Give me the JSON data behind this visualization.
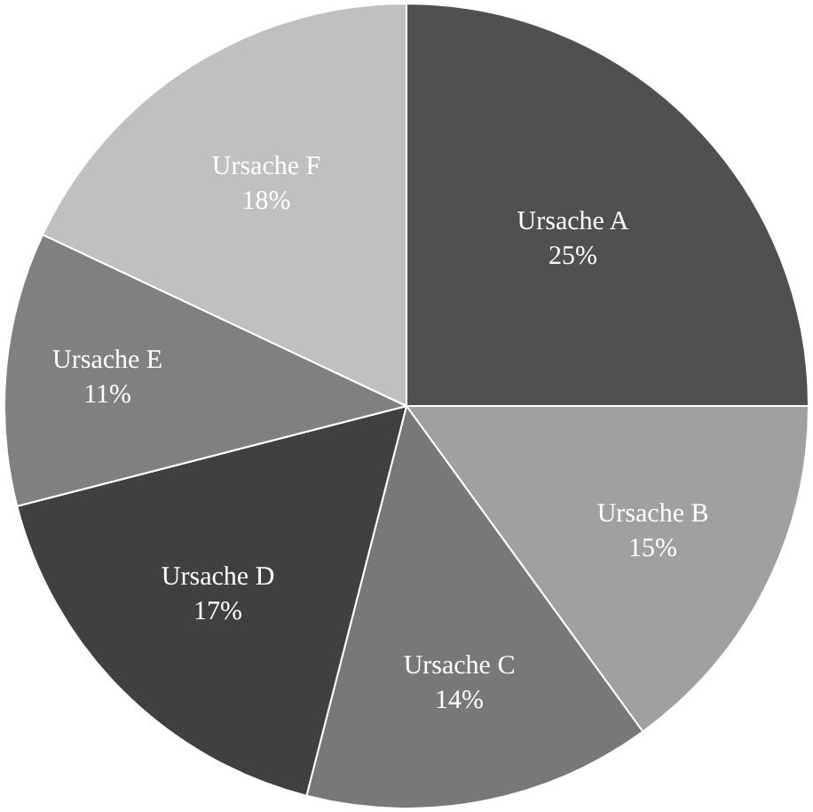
{
  "chart_data": {
    "type": "pie",
    "categories": [
      "Ursache A",
      "Ursache B",
      "Ursache C",
      "Ursache D",
      "Ursache E",
      "Ursache F"
    ],
    "values": [
      25,
      15,
      14,
      17,
      11,
      18
    ],
    "colors": [
      "#505050",
      "#a0a0a0",
      "#787878",
      "#404040",
      "#808080",
      "#c0c0c0"
    ],
    "value_labels": [
      "25%",
      "15%",
      "14%",
      "17%",
      "11%",
      "18%"
    ],
    "legend": false
  }
}
